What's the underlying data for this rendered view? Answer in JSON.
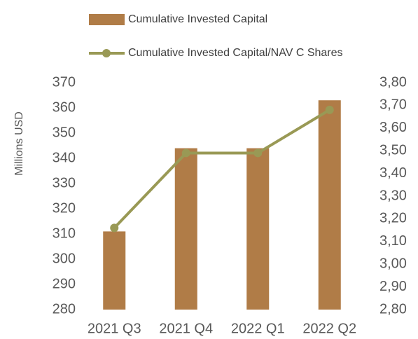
{
  "chart_data": {
    "type": "bar_line",
    "y_label": "Millions USD",
    "categories": [
      "2021 Q3",
      "2021 Q4",
      "2022 Q1",
      "2022 Q2"
    ],
    "series": [
      {
        "name": "Cumulative Invested Capital",
        "type": "bar",
        "color": "#b07c47",
        "values": [
          311,
          344,
          344,
          363
        ]
      },
      {
        "name": "Cumulative Invested Capital/NAV C Shares",
        "type": "line",
        "axis": "y2",
        "color": "#999955",
        "values": [
          3.16,
          3.49,
          3.49,
          3.68
        ]
      }
    ],
    "ylim": [
      280,
      370
    ],
    "yticks": [
      280,
      290,
      300,
      310,
      320,
      330,
      340,
      350,
      360,
      370
    ],
    "y2lim": [
      2.8,
      3.8
    ],
    "y2ticks": [
      {
        "value": 2.8,
        "label": "2,80"
      },
      {
        "value": 2.9,
        "label": "2,90"
      },
      {
        "value": 3.0,
        "label": "3,00"
      },
      {
        "value": 3.1,
        "label": "3,10"
      },
      {
        "value": 3.2,
        "label": "3,20"
      },
      {
        "value": 3.3,
        "label": "3,30"
      },
      {
        "value": 3.4,
        "label": "3,40"
      },
      {
        "value": 3.5,
        "label": "3,50"
      },
      {
        "value": 3.6,
        "label": "3,60"
      },
      {
        "value": 3.7,
        "label": "3,70"
      },
      {
        "value": 3.8,
        "label": "3,80"
      }
    ],
    "legend": "top",
    "grid": false
  }
}
